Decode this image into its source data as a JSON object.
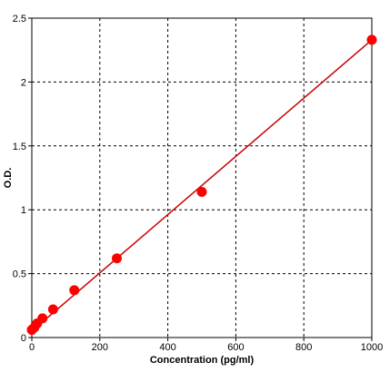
{
  "chart_data": {
    "type": "scatter",
    "title": "",
    "xlabel": "Concentration (pg/ml)",
    "ylabel": "O.D.",
    "xlim": [
      0,
      1000
    ],
    "ylim": [
      0,
      2.5
    ],
    "x_ticks": [
      0,
      200,
      400,
      600,
      800,
      1000
    ],
    "x_tick_labels": [
      "0",
      "200",
      "400",
      "600",
      "800",
      "1000"
    ],
    "y_ticks": [
      0,
      0.5,
      1,
      1.5,
      2,
      2.5
    ],
    "y_tick_labels": [
      "0",
      "0.5",
      "1",
      "1.5",
      "2",
      "2.5"
    ],
    "grid": true,
    "legend": "none",
    "colors": {
      "points": "#ff0000",
      "fit_line": "#cc0000",
      "grid": "#000000"
    },
    "series": [
      {
        "x": [
          0,
          7.8,
          15.6,
          31.25,
          62.5,
          125,
          250,
          500,
          1000
        ],
        "y": [
          0.06,
          0.08,
          0.11,
          0.15,
          0.22,
          0.37,
          0.62,
          1.14,
          2.33
        ]
      }
    ],
    "fit_line": {
      "x": [
        0,
        1000
      ],
      "y": [
        0.05,
        2.33
      ]
    }
  }
}
